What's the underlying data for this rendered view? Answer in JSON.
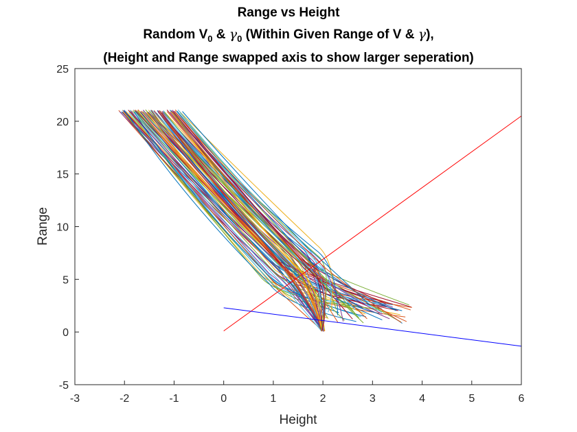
{
  "chart_data": {
    "type": "line",
    "title": {
      "line1": "Range vs Height",
      "line2_prefix": "Random V",
      "line2_sub1": "0",
      "line2_amp": " & ",
      "line2_gamma": "γ",
      "line2_sub2": "0",
      "line2_mid": " (Within Given Range of V & ",
      "line2_gamma2": "γ",
      "line2_suffix": "),",
      "line3": "(Height and Range swapped axis to show larger seperation)"
    },
    "xlabel": "Height",
    "ylabel": "Range",
    "xlim": [
      -3,
      6
    ],
    "ylim": [
      -5,
      25
    ],
    "xticks": [
      -3,
      -2,
      -1,
      0,
      1,
      2,
      3,
      4,
      5,
      6
    ],
    "yticks": [
      -5,
      0,
      5,
      10,
      15,
      20,
      25
    ],
    "grid": false,
    "reference_lines": [
      {
        "color": "#ff0000",
        "x": [
          0,
          6
        ],
        "y": [
          0.1,
          20.5
        ]
      },
      {
        "color": "#0000ff",
        "x": [
          0,
          6
        ],
        "y": [
          2.3,
          -1.35
        ]
      }
    ],
    "trajectories": {
      "count": 100,
      "colors": [
        "#0072BD",
        "#D95319",
        "#EDB120",
        "#7E2F8E",
        "#77AC30",
        "#4DBEEE",
        "#A2142F"
      ],
      "start_height_range": [
        -2.2,
        -0.8
      ],
      "start_range_range": [
        20.8,
        21.1
      ],
      "mid_height_range": [
        0.65,
        2.0
      ],
      "mid_range_range": [
        4.3,
        8.6
      ],
      "end_height_range": [
        1.95,
        3.8
      ],
      "end_range_range": [
        0.0,
        2.8
      ],
      "convergence_point": [
        2.0,
        0.05
      ]
    }
  }
}
